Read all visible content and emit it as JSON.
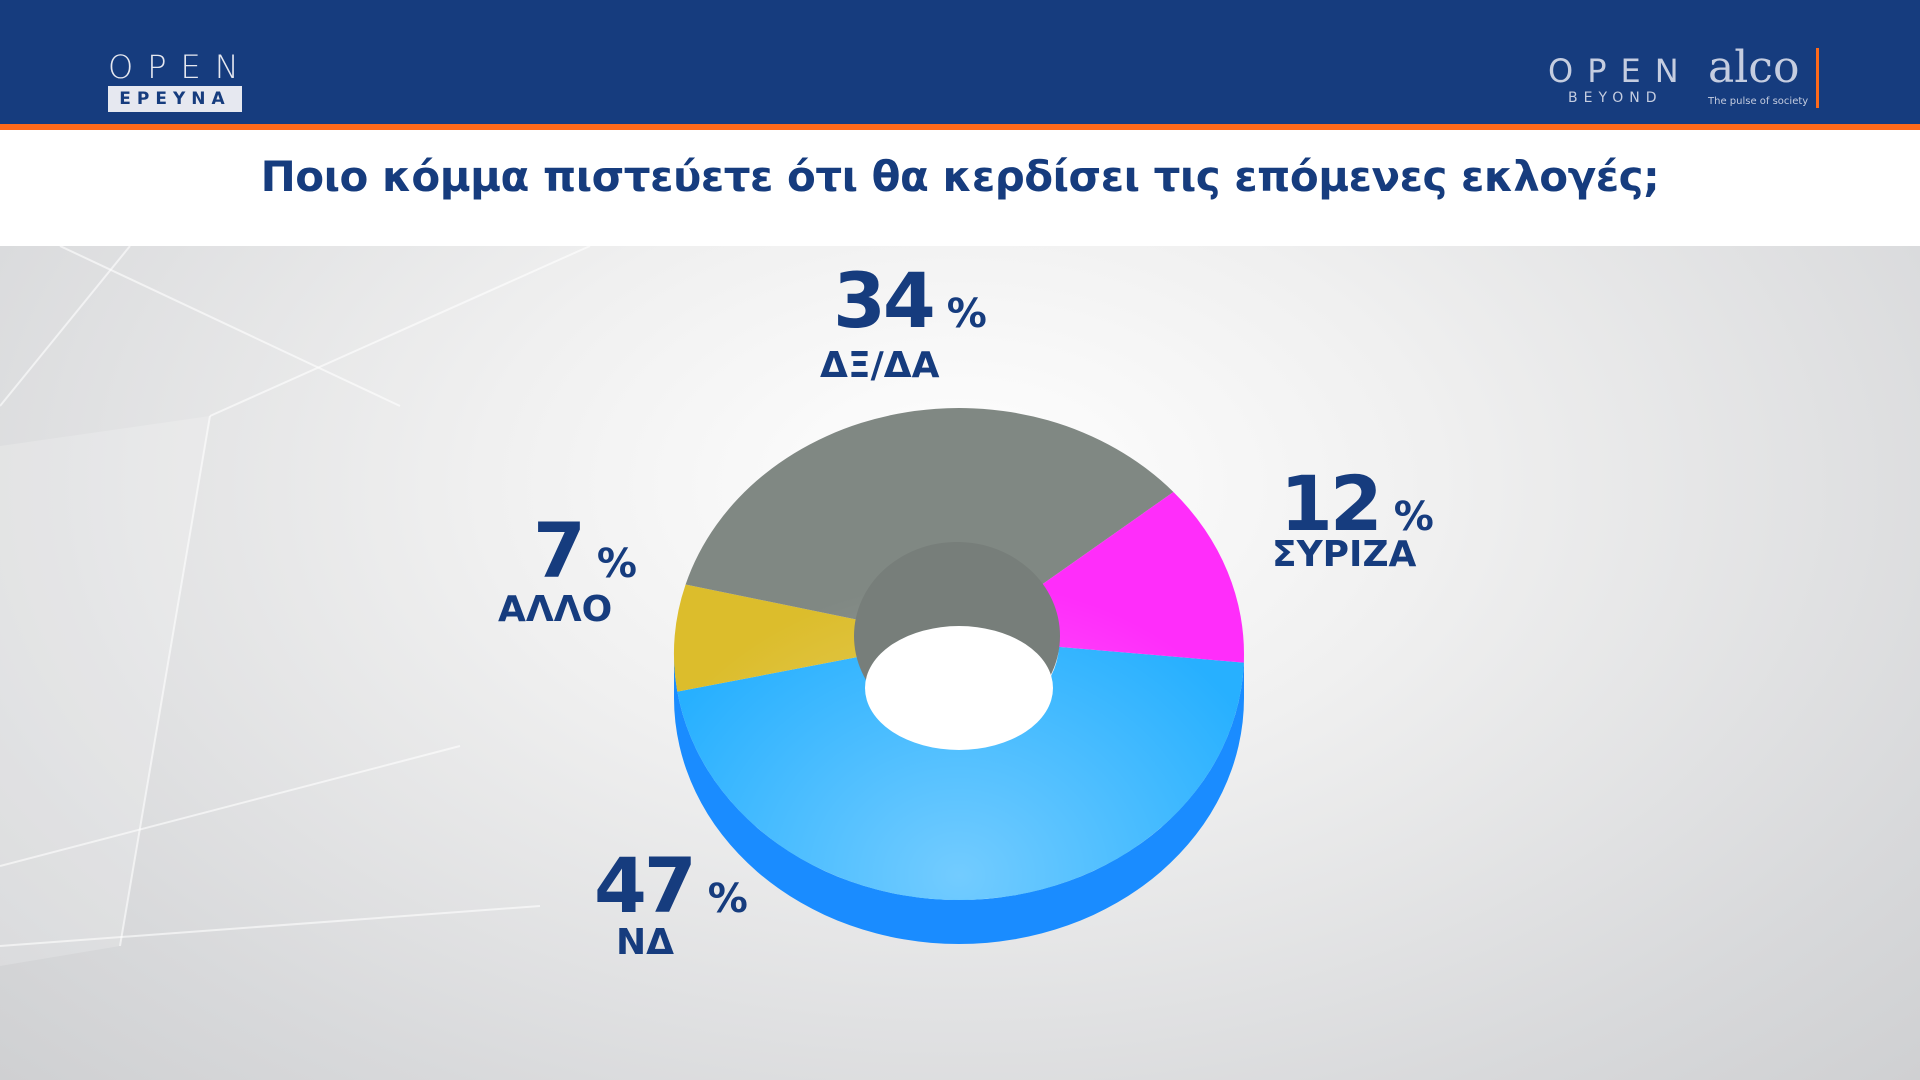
{
  "header": {
    "left_logo": {
      "brand": "OPEN",
      "sub": "ΕΡΕΥΝΑ"
    },
    "right_logo": {
      "brand": "OPEN",
      "sub": "BEYOND",
      "partner": "alco",
      "partner_tagline": "The pulse of society"
    }
  },
  "colors": {
    "header_bg": "#163c7e",
    "accent": "#ff6a1a",
    "text": "#163c7e"
  },
  "chart_data": {
    "type": "pie",
    "style": "3d-donut",
    "title": "Ποιο κόμμα πιστεύετε ότι  θα κερδίσει τις επόμενες εκλογές;",
    "unit": "%",
    "slices": [
      {
        "label": "ΝΔ",
        "value": 47,
        "display": "47",
        "color": "#27b0ff"
      },
      {
        "label": "ΑΛΛΟ",
        "value": 7,
        "display": "7",
        "color": "#dcbd2c"
      },
      {
        "label": "ΔΞ/ΔΑ",
        "value": 34,
        "display": "34",
        "color": "#808883"
      },
      {
        "label": "ΣΥΡΙΖΑ",
        "value": 12,
        "display": "12",
        "color": "#ff2dfa"
      }
    ]
  }
}
